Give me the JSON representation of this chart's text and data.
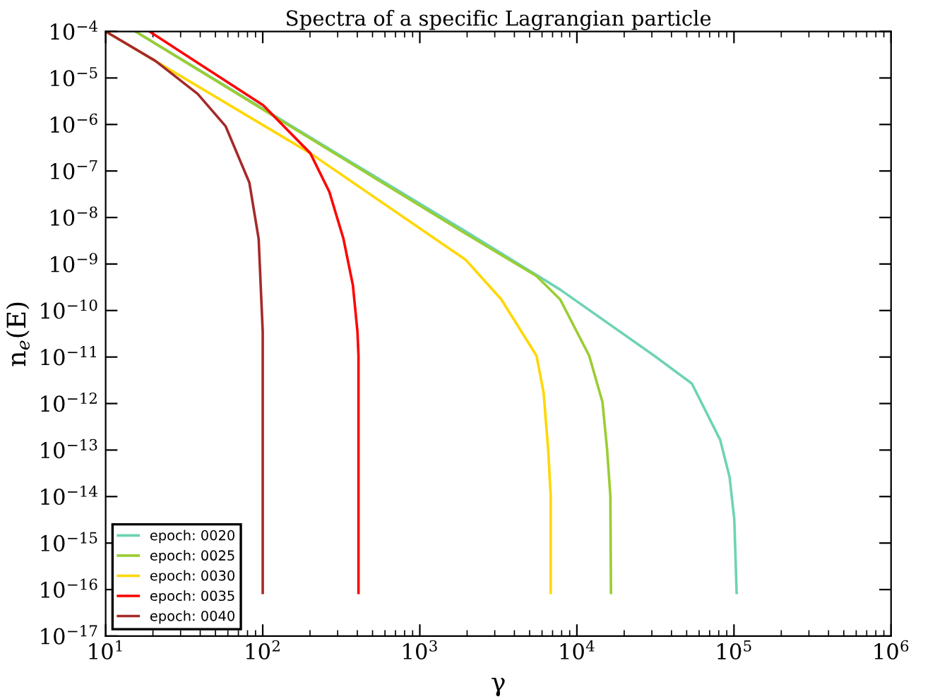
{
  "chart_data": {
    "type": "line",
    "title": "Spectra of a specific Lagrangian particle",
    "xlabel": "γ",
    "ylabel": "n$_{e}$(E)",
    "log": "xy",
    "xlim": [
      10,
      1000000
    ],
    "ylim": [
      1e-17,
      0.0001
    ],
    "xticks": [
      {
        "value": 10,
        "label": "10$^{1}$"
      },
      {
        "value": 100,
        "label": "10$^{2}$"
      },
      {
        "value": 1000,
        "label": "10$^{3}$"
      },
      {
        "value": 10000,
        "label": "10$^{4}$"
      },
      {
        "value": 100000,
        "label": "10$^{5}$"
      },
      {
        "value": 1000000,
        "label": "10$^{6}$"
      }
    ],
    "yticks": [
      {
        "value": 1e-17,
        "label": "10$^{−17}$"
      },
      {
        "value": 1e-16,
        "label": "10$^{−16}$"
      },
      {
        "value": 1e-15,
        "label": "10$^{−15}$"
      },
      {
        "value": 1e-14,
        "label": "10$^{−14}$"
      },
      {
        "value": 1e-13,
        "label": "10$^{−13}$"
      },
      {
        "value": 1e-12,
        "label": "10$^{−12}$"
      },
      {
        "value": 1e-11,
        "label": "10$^{−11}$"
      },
      {
        "value": 1e-10,
        "label": "10$^{−10}$"
      },
      {
        "value": 1e-09,
        "label": "10$^{−9}$"
      },
      {
        "value": 1e-08,
        "label": "10$^{−8}$"
      },
      {
        "value": 1e-07,
        "label": "10$^{−7}$"
      },
      {
        "value": 1e-06,
        "label": "10$^{−6}$"
      },
      {
        "value": 1e-05,
        "label": "10$^{−5}$"
      },
      {
        "value": 0.0001,
        "label": "10$^{−4}$"
      }
    ],
    "grid": false,
    "legend": "bottom left",
    "marker": "none",
    "line_style": "solid",
    "series": [
      {
        "name": "epoch: 0020",
        "color": "#6dd3b5",
        "x": [
          15.5,
          1960,
          7820,
          31050,
          53950,
          81660,
          93760,
          100460,
          104000
        ],
        "values": [
          0.0001,
          5.01e-09,
          2.82e-10,
          1.07e-11,
          2.69e-12,
          1.66e-13,
          2.63e-14,
          3.24e-15,
          8.5e-17
        ]
      },
      {
        "name": "epoch: 0025",
        "color": "#9acd32",
        "x": [
          15.5,
          1960,
          5530,
          7820,
          11970,
          14550,
          15560,
          16330,
          16480
        ],
        "values": [
          0.0001,
          4.47e-09,
          5.5e-10,
          1.74e-10,
          1.07e-11,
          1.07e-12,
          1.05e-13,
          1.05e-14,
          8.5e-17
        ]
      },
      {
        "name": "epoch: 0030",
        "color": "#ffd700",
        "x": [
          10,
          201,
          1960,
          3300,
          5530,
          6140,
          6560,
          6810,
          6810
        ],
        "values": [
          0.0001,
          2.4e-07,
          1.23e-09,
          1.74e-10,
          1.07e-11,
          1.7e-12,
          1.05e-13,
          1.05e-14,
          8.5e-17
        ]
      },
      {
        "name": "epoch: 0035",
        "color": "#ff0000",
        "x": [
          19.0,
          100.9,
          201,
          265.5,
          326.6,
          375,
          401,
          407,
          407
        ],
        "values": [
          0.0001,
          2.57e-06,
          2.4e-07,
          3.55e-08,
          3.47e-09,
          3.47e-10,
          3.47e-11,
          1.07e-11,
          8.5e-17
        ]
      },
      {
        "name": "epoch: 0040",
        "color": "#a52a2a",
        "x": [
          10,
          20.7,
          38.5,
          58.1,
          82.2,
          94.2,
          100,
          100
        ],
        "values": [
          0.0001,
          2.34e-05,
          4.57e-06,
          9.12e-07,
          5.62e-08,
          3.47e-09,
          3.47e-11,
          8.5e-17
        ]
      }
    ]
  }
}
